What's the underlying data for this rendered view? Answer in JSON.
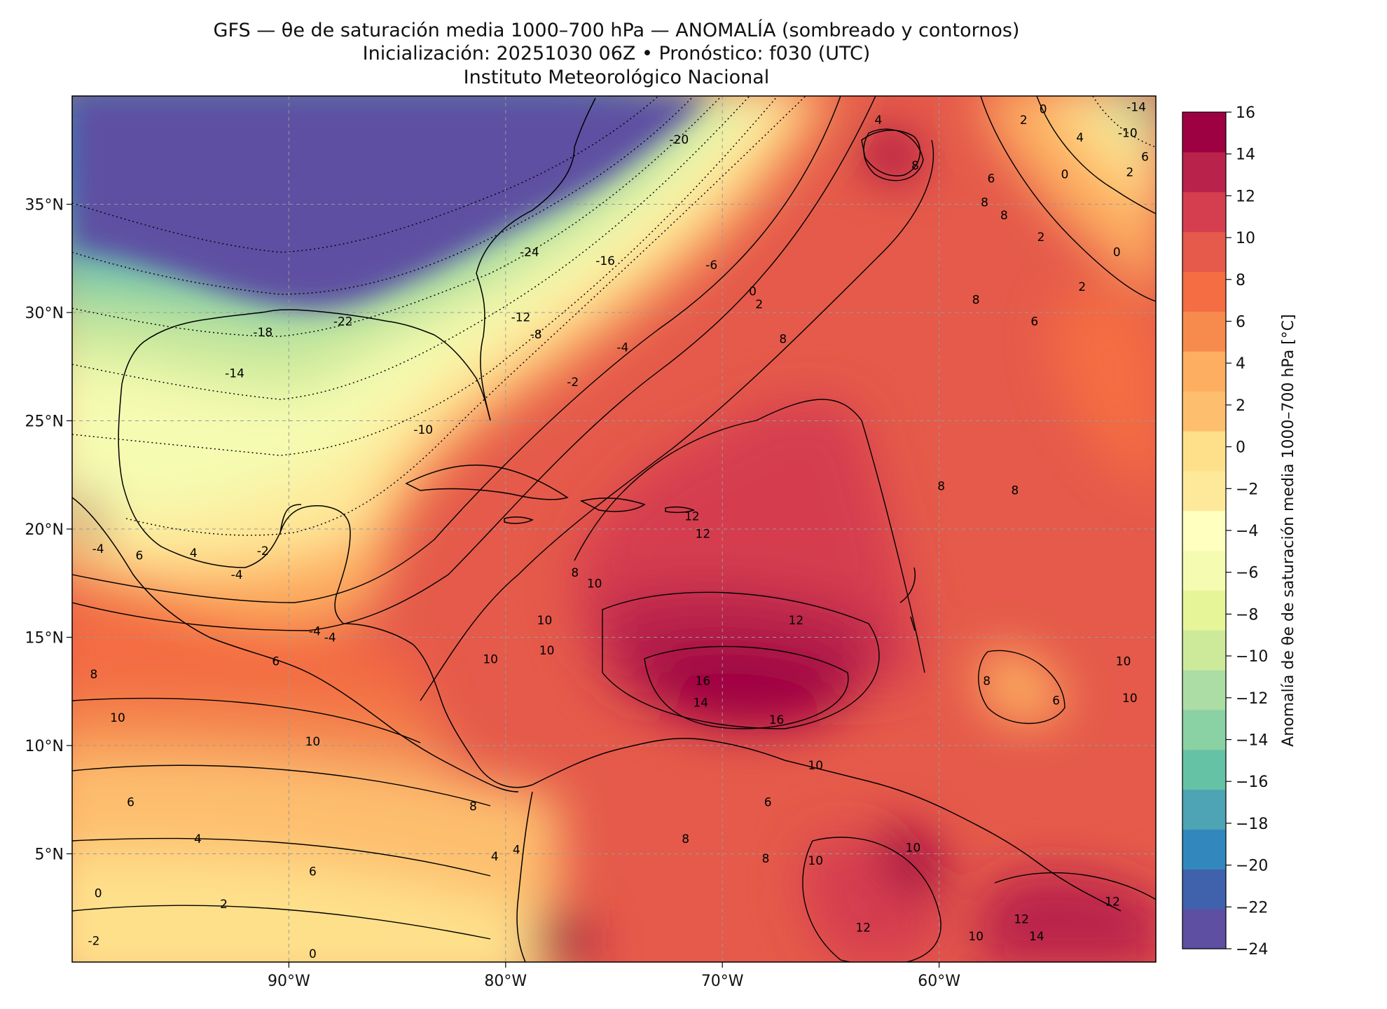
{
  "title": {
    "line1": "GFS — θe de saturación media 1000–700 hPa — ANOMALÍA (sombreado y contornos)",
    "line2": "Inicialización: 20251030 06Z   •   Pronóstico: f030 (UTC)",
    "line3": "Instituto Meteorológico Nacional"
  },
  "map": {
    "lon_range": [
      -100,
      -50
    ],
    "lat_range": [
      0,
      40
    ],
    "lon_ticks": [
      {
        "value": -90,
        "label": "90°W"
      },
      {
        "value": -80,
        "label": "80°W"
      },
      {
        "value": -70,
        "label": "70°W"
      },
      {
        "value": -60,
        "label": "60°W"
      }
    ],
    "lat_ticks": [
      {
        "value": 35,
        "label": "35°N"
      },
      {
        "value": 30,
        "label": "30°N"
      },
      {
        "value": 25,
        "label": "25°N"
      },
      {
        "value": 20,
        "label": "20°N"
      },
      {
        "value": 15,
        "label": "15°N"
      },
      {
        "value": 10,
        "label": "10°N"
      },
      {
        "value": 5,
        "label": "5°N"
      }
    ],
    "gridlines": "dashed",
    "contour_labels": [
      {
        "lon": -87.5,
        "lat": 29.4,
        "text": "-22"
      },
      {
        "lon": -91.2,
        "lat": 28.9,
        "text": "-18"
      },
      {
        "lon": -92.5,
        "lat": 27.0,
        "text": "-14"
      },
      {
        "lon": -83.8,
        "lat": 24.4,
        "text": "-10"
      },
      {
        "lon": -78.9,
        "lat": 32.6,
        "text": "-24"
      },
      {
        "lon": -75.4,
        "lat": 32.2,
        "text": "-16"
      },
      {
        "lon": -72.0,
        "lat": 37.8,
        "text": "-20"
      },
      {
        "lon": -79.3,
        "lat": 29.6,
        "text": "-12"
      },
      {
        "lon": -78.6,
        "lat": 28.8,
        "text": "-8"
      },
      {
        "lon": -70.5,
        "lat": 32.0,
        "text": "-6"
      },
      {
        "lon": -74.6,
        "lat": 28.2,
        "text": "-4"
      },
      {
        "lon": -76.9,
        "lat": 26.6,
        "text": "-2"
      },
      {
        "lon": -68.6,
        "lat": 30.8,
        "text": "0"
      },
      {
        "lon": -68.3,
        "lat": 30.2,
        "text": "2"
      },
      {
        "lon": -67.2,
        "lat": 28.6,
        "text": "8"
      },
      {
        "lon": -91.2,
        "lat": 18.8,
        "text": "-2"
      },
      {
        "lon": -92.4,
        "lat": 17.7,
        "text": "-4"
      },
      {
        "lon": -88.8,
        "lat": 15.1,
        "text": "-4"
      },
      {
        "lon": -88.1,
        "lat": 14.8,
        "text": "-4"
      },
      {
        "lon": -94.4,
        "lat": 18.7,
        "text": "4"
      },
      {
        "lon": -96.9,
        "lat": 18.6,
        "text": "6"
      },
      {
        "lon": -98.8,
        "lat": 18.9,
        "text": "-4"
      },
      {
        "lon": -90.6,
        "lat": 13.7,
        "text": "6"
      },
      {
        "lon": -99.0,
        "lat": 13.1,
        "text": "8"
      },
      {
        "lon": -97.9,
        "lat": 11.1,
        "text": "10"
      },
      {
        "lon": -88.9,
        "lat": 10.0,
        "text": "10"
      },
      {
        "lon": -97.3,
        "lat": 7.2,
        "text": "6"
      },
      {
        "lon": -94.2,
        "lat": 5.5,
        "text": "4"
      },
      {
        "lon": -98.8,
        "lat": 3.0,
        "text": "0"
      },
      {
        "lon": -99.0,
        "lat": 0.8,
        "text": "-2"
      },
      {
        "lon": -88.9,
        "lat": 0.2,
        "text": "0"
      },
      {
        "lon": -93.0,
        "lat": 2.5,
        "text": "2"
      },
      {
        "lon": -88.9,
        "lat": 4.0,
        "text": "6"
      },
      {
        "lon": -81.5,
        "lat": 7.0,
        "text": "8"
      },
      {
        "lon": -79.5,
        "lat": 5.0,
        "text": "4"
      },
      {
        "lon": -80.5,
        "lat": 4.7,
        "text": "4"
      },
      {
        "lon": -76.8,
        "lat": 17.8,
        "text": "8"
      },
      {
        "lon": -75.9,
        "lat": 17.3,
        "text": "10"
      },
      {
        "lon": -78.2,
        "lat": 15.6,
        "text": "10"
      },
      {
        "lon": -80.7,
        "lat": 13.8,
        "text": "10"
      },
      {
        "lon": -78.1,
        "lat": 14.2,
        "text": "10"
      },
      {
        "lon": -71.4,
        "lat": 20.4,
        "text": "12"
      },
      {
        "lon": -70.9,
        "lat": 19.6,
        "text": "12"
      },
      {
        "lon": -66.6,
        "lat": 15.6,
        "text": "12"
      },
      {
        "lon": -70.9,
        "lat": 12.8,
        "text": "16"
      },
      {
        "lon": -71.0,
        "lat": 11.8,
        "text": "14"
      },
      {
        "lon": -67.5,
        "lat": 11.0,
        "text": "16"
      },
      {
        "lon": -65.7,
        "lat": 8.9,
        "text": "10"
      },
      {
        "lon": -67.9,
        "lat": 7.2,
        "text": "6"
      },
      {
        "lon": -68.0,
        "lat": 4.6,
        "text": "8"
      },
      {
        "lon": -71.7,
        "lat": 5.5,
        "text": "8"
      },
      {
        "lon": -65.7,
        "lat": 4.5,
        "text": "10"
      },
      {
        "lon": -63.5,
        "lat": 1.4,
        "text": "12"
      },
      {
        "lon": -61.2,
        "lat": 5.1,
        "text": "10"
      },
      {
        "lon": -58.3,
        "lat": 1.0,
        "text": "10"
      },
      {
        "lon": -55.5,
        "lat": 1.0,
        "text": "14"
      },
      {
        "lon": -56.2,
        "lat": 1.8,
        "text": "12"
      },
      {
        "lon": -52.0,
        "lat": 2.6,
        "text": "12"
      },
      {
        "lon": -51.2,
        "lat": 12.0,
        "text": "10"
      },
      {
        "lon": -51.5,
        "lat": 13.7,
        "text": "10"
      },
      {
        "lon": -57.8,
        "lat": 12.8,
        "text": "8"
      },
      {
        "lon": -54.6,
        "lat": 11.9,
        "text": "6"
      },
      {
        "lon": -56.5,
        "lat": 21.6,
        "text": "8"
      },
      {
        "lon": -59.9,
        "lat": 21.8,
        "text": "8"
      },
      {
        "lon": -55.6,
        "lat": 29.4,
        "text": "6"
      },
      {
        "lon": -53.4,
        "lat": 31.0,
        "text": "2"
      },
      {
        "lon": -55.3,
        "lat": 33.3,
        "text": "2"
      },
      {
        "lon": -54.2,
        "lat": 36.2,
        "text": "0"
      },
      {
        "lon": -51.8,
        "lat": 32.6,
        "text": "0"
      },
      {
        "lon": -58.3,
        "lat": 30.4,
        "text": "8"
      },
      {
        "lon": -57.9,
        "lat": 34.9,
        "text": "8"
      },
      {
        "lon": -57.0,
        "lat": 34.3,
        "text": "8"
      },
      {
        "lon": -57.6,
        "lat": 36.0,
        "text": "6"
      },
      {
        "lon": -51.3,
        "lat": 38.1,
        "text": "-10"
      },
      {
        "lon": -50.9,
        "lat": 39.3,
        "text": "-14"
      },
      {
        "lon": -50.5,
        "lat": 37.0,
        "text": "6"
      },
      {
        "lon": -51.2,
        "lat": 36.3,
        "text": "2"
      },
      {
        "lon": -53.5,
        "lat": 37.9,
        "text": "4"
      },
      {
        "lon": -56.1,
        "lat": 38.7,
        "text": "2"
      },
      {
        "lon": -55.2,
        "lat": 39.2,
        "text": "0"
      },
      {
        "lon": -62.8,
        "lat": 38.7,
        "text": "4"
      },
      {
        "lon": -61.1,
        "lat": 36.6,
        "text": "8"
      }
    ]
  },
  "colorbar": {
    "label": "Anomalía de θe de saturación media 1000–700 hPa [°C]",
    "ticks": [
      "16",
      "14",
      "12",
      "10",
      "8",
      "6",
      "4",
      "2",
      "0",
      "−2",
      "−4",
      "−6",
      "−8",
      "−10",
      "−12",
      "−14",
      "−16",
      "−18",
      "−20",
      "−22",
      "−24"
    ],
    "colors": [
      "#5e4fa2",
      "#4062ad",
      "#3288bd",
      "#4ea3b4",
      "#66c2a5",
      "#8ad1a4",
      "#abdda4",
      "#cdea9b",
      "#e6f598",
      "#f5fbb1",
      "#ffffbf",
      "#fee99a",
      "#fee08b",
      "#fdbe6e",
      "#fdae61",
      "#f68b4d",
      "#f46d43",
      "#e55a4a",
      "#d53e4f",
      "#b9234b",
      "#9e0142"
    ]
  }
}
